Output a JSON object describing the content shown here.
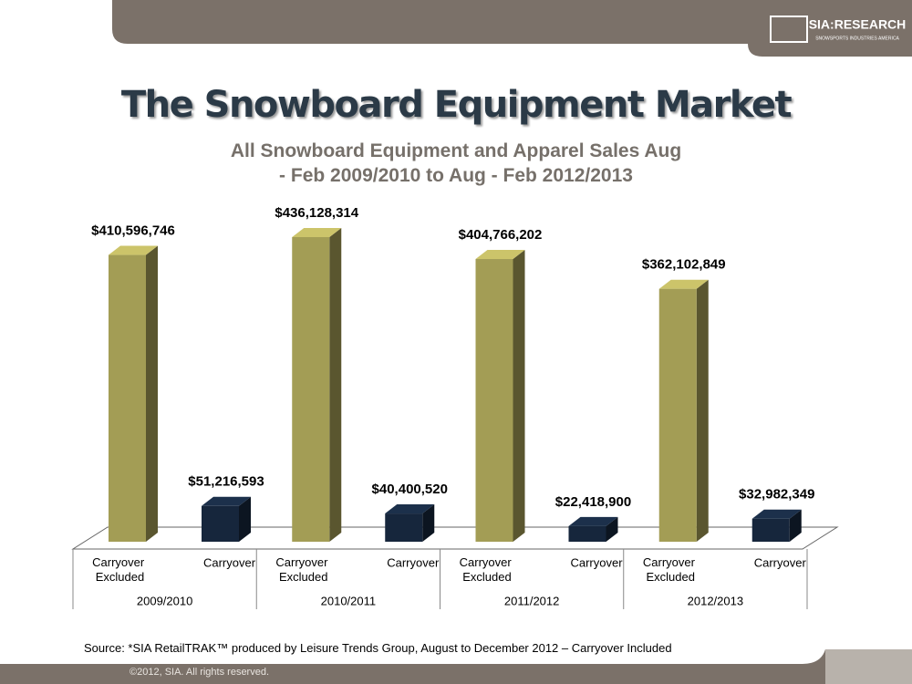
{
  "header": {
    "logo": "SIA:RESEARCH",
    "logo_subtitle": "SNOWSPORTS INDUSTRIES AMERICA"
  },
  "chart_data": {
    "type": "bar",
    "title": "The Snowboard Equipment Market",
    "subtitle": "All Snowboard Equipment and Apparel Sales Aug - Feb 2009/2010 to Aug - Feb 2012/2013",
    "categories": [
      "2009/2010",
      "2010/2011",
      "2011/2012",
      "2012/2013"
    ],
    "series": [
      {
        "name": "Carryover Excluded",
        "color": "#a39d55",
        "values": [
          410596746,
          436128314,
          404766202,
          362102849
        ],
        "value_labels": [
          "$410,596,746",
          "$436,128,314",
          "$404,766,202",
          "$362,102,849"
        ]
      },
      {
        "name": "Carryover",
        "color": "#16263c",
        "values": [
          51216593,
          40400520,
          22418900,
          32982349
        ],
        "value_labels": [
          "$51,216,593",
          "$40,400,520",
          "$22,418,900",
          "$32,982,349"
        ]
      }
    ]
  },
  "footer": {
    "source": "Source:  *SIA RetailTRAK™ produced by Leisure Trends Group, August to December 2012 – Carryover Included",
    "copyright": "©2012, SIA. All rights reserved."
  }
}
